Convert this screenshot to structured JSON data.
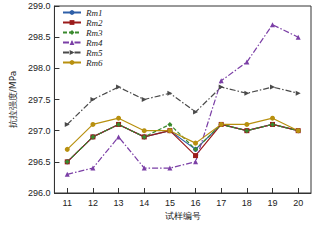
{
  "chart_data": {
    "type": "line",
    "x_label": "试样编号",
    "y_label": "抗拉强度/MPa",
    "categories": [
      "11",
      "12",
      "13",
      "14",
      "15",
      "16",
      "17",
      "18",
      "19",
      "20"
    ],
    "ylim": [
      296.0,
      299.0
    ],
    "yticks": [
      {
        "value": 296,
        "label": "296.0"
      },
      296.5,
      {
        "value": 297,
        "label": "297.0"
      },
      297.5,
      {
        "value": 298,
        "label": "298.0"
      },
      298.5,
      {
        "value": 299,
        "label": "299.0"
      }
    ],
    "grid": false,
    "legend": "upper left",
    "series": [
      {
        "name": "Rm1",
        "color": "#2e5fa8",
        "marker": "circle",
        "line_style": "solid",
        "values": [
          296.5,
          296.9,
          297.1,
          296.9,
          297.0,
          296.7,
          297.1,
          297.0,
          297.1,
          297.0
        ]
      },
      {
        "name": "Rm2",
        "color": "#9b1b1b",
        "marker": "square",
        "line_style": "solid",
        "values": [
          296.5,
          296.9,
          297.1,
          296.9,
          297.0,
          296.6,
          297.1,
          297.0,
          297.1,
          297.0
        ]
      },
      {
        "name": "Rm3",
        "color": "#3a8a2e",
        "marker": "diamond",
        "line_style": "dashed",
        "values": [
          296.5,
          296.9,
          297.1,
          296.9,
          297.1,
          296.7,
          297.1,
          297.0,
          297.1,
          297.0
        ]
      },
      {
        "name": "Rm4",
        "color": "#7b3fa6",
        "marker": "triangle",
        "line_style": "dashdot",
        "values": [
          296.3,
          296.4,
          296.9,
          296.4,
          296.4,
          296.5,
          297.8,
          298.1,
          298.7,
          298.5
        ]
      },
      {
        "name": "Rm5",
        "color": "#4a4a4a",
        "marker": "triangle-right",
        "line_style": "dashdot",
        "values": [
          297.1,
          297.5,
          297.7,
          297.5,
          297.6,
          297.3,
          297.7,
          297.6,
          297.7,
          297.6
        ]
      },
      {
        "name": "Rm6",
        "color": "#b8900f",
        "marker": "circle",
        "line_style": "solid",
        "values": [
          296.7,
          297.1,
          297.2,
          297.0,
          297.0,
          296.8,
          297.1,
          297.1,
          297.2,
          297.0
        ]
      }
    ]
  }
}
